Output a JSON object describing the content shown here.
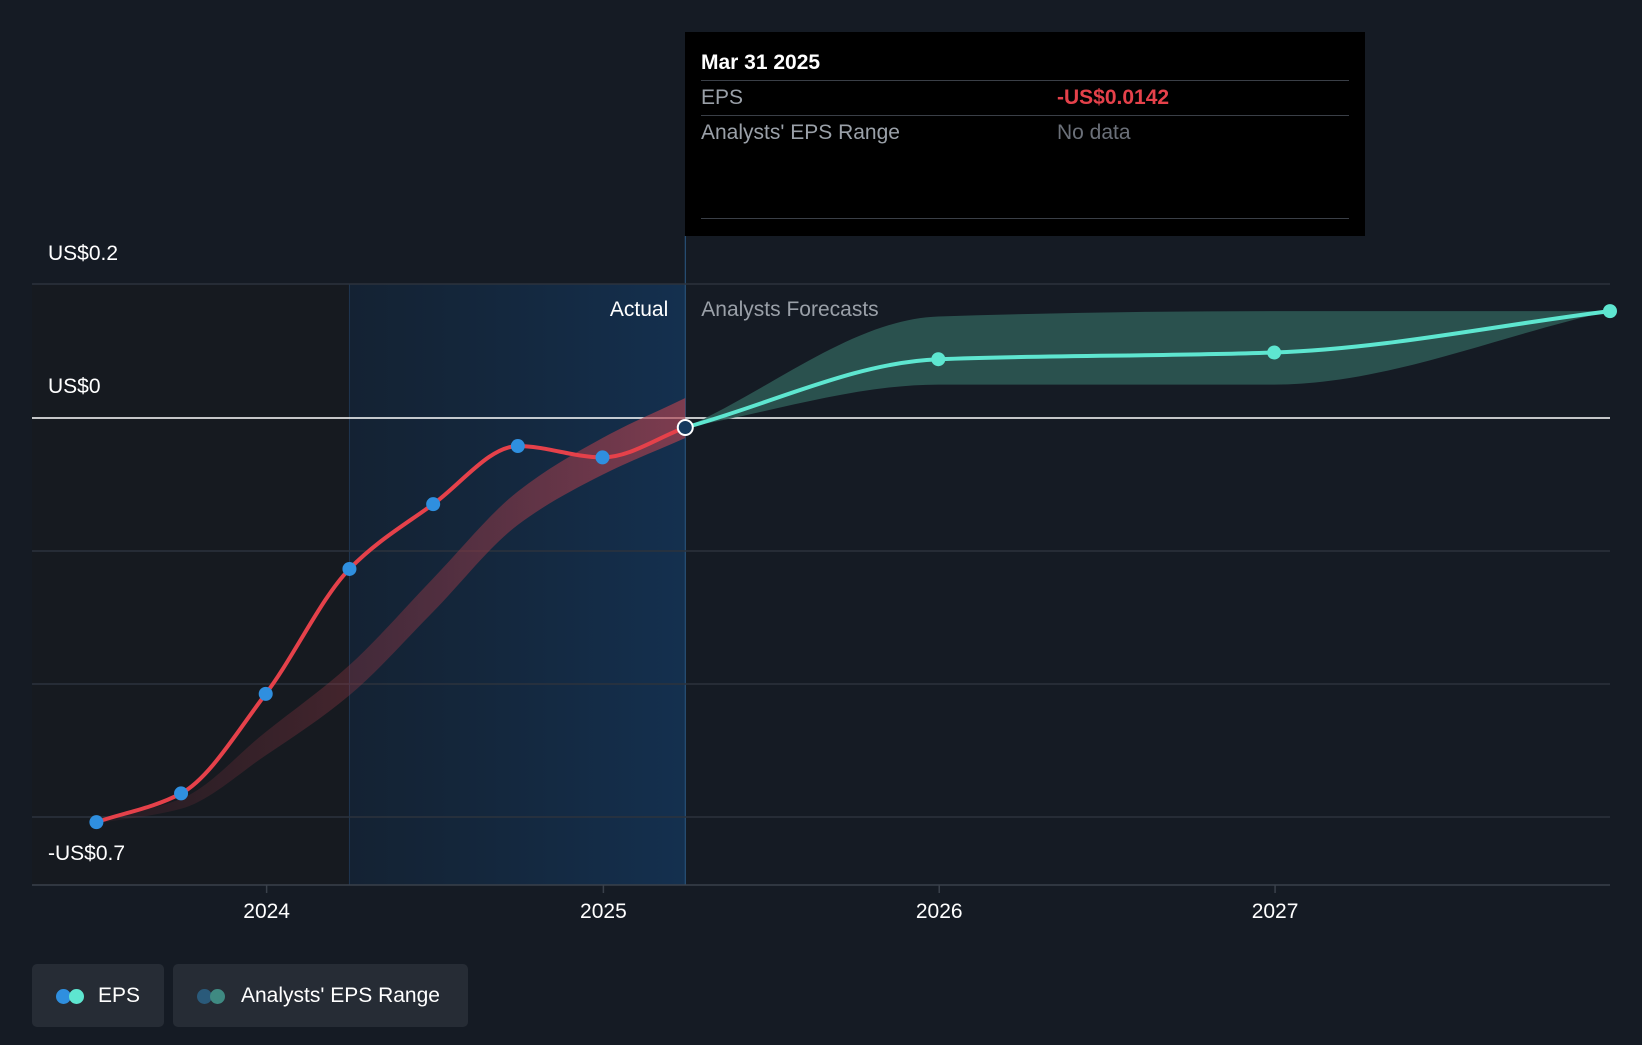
{
  "colors": {
    "background": "#151b24",
    "actual_line": "#e5414a",
    "actual_point": "#2f8fdf",
    "forecast_line": "#5ee6d0",
    "forecast_band": "#2e5a56",
    "actual_band": "#7a2e3a",
    "highlight_region": "#13273d",
    "zero_line": "#ffffff",
    "grid": "#2c333d"
  },
  "tooltip": {
    "date": "Mar 31 2025",
    "eps_label": "EPS",
    "eps_value": "-US$0.0142",
    "range_label": "Analysts' EPS Range",
    "range_value": "No data"
  },
  "legend": {
    "eps_label": "EPS",
    "range_label": "Analysts' EPS Range"
  },
  "chart_data": {
    "type": "line",
    "title": "",
    "xlabel": "",
    "ylabel": "",
    "x_ticks": [
      "2024",
      "2025",
      "2026",
      "2027"
    ],
    "y_ticks": [
      {
        "value": 0.2,
        "label": "US$0.2"
      },
      {
        "value": 0,
        "label": "US$0"
      },
      {
        "value": -0.7,
        "label": "-US$0.7"
      }
    ],
    "ylim": [
      -0.7,
      0.2
    ],
    "xlim": [
      "2023-04",
      "2027-12"
    ],
    "grid": true,
    "region_labels": {
      "actual": "Actual",
      "forecast": "Analysts Forecasts"
    },
    "past_period_start": "2024-03-31",
    "present_date": "2025-03-31",
    "series": [
      {
        "name": "EPS",
        "kind": "actual",
        "x": [
          "2023-06-30",
          "2023-09-30",
          "2023-12-31",
          "2024-03-31",
          "2024-06-30",
          "2024-09-30",
          "2024-12-31",
          "2025-03-31"
        ],
        "values": [
          -0.605,
          -0.562,
          -0.413,
          -0.226,
          -0.129,
          -0.042,
          -0.059,
          -0.0142
        ]
      },
      {
        "name": "EPS",
        "kind": "forecast",
        "x": [
          "2025-03-31",
          "2025-12-31",
          "2026-12-31",
          "2027-12-31"
        ],
        "values": [
          -0.0142,
          0.088,
          0.098,
          0.16
        ]
      }
    ],
    "ranges": [
      {
        "name": "Analysts' EPS Range",
        "kind": "past_estimates",
        "x": [
          "2023-06-30",
          "2023-09-30",
          "2023-12-31",
          "2024-03-31",
          "2024-06-30",
          "2024-09-30",
          "2024-12-31",
          "2025-03-31"
        ],
        "low": [
          -0.607,
          -0.585,
          -0.505,
          -0.415,
          -0.29,
          -0.16,
          -0.085,
          -0.03
        ],
        "high": [
          -0.603,
          -0.57,
          -0.47,
          -0.37,
          -0.24,
          -0.11,
          -0.03,
          0.03
        ]
      },
      {
        "name": "Analysts' EPS Range",
        "kind": "forecast",
        "x": [
          "2025-03-31",
          "2025-12-31",
          "2026-12-31",
          "2027-12-31"
        ],
        "low": [
          -0.014,
          0.05,
          0.05,
          0.16
        ],
        "high": [
          -0.014,
          0.152,
          0.16,
          0.16
        ]
      }
    ]
  }
}
